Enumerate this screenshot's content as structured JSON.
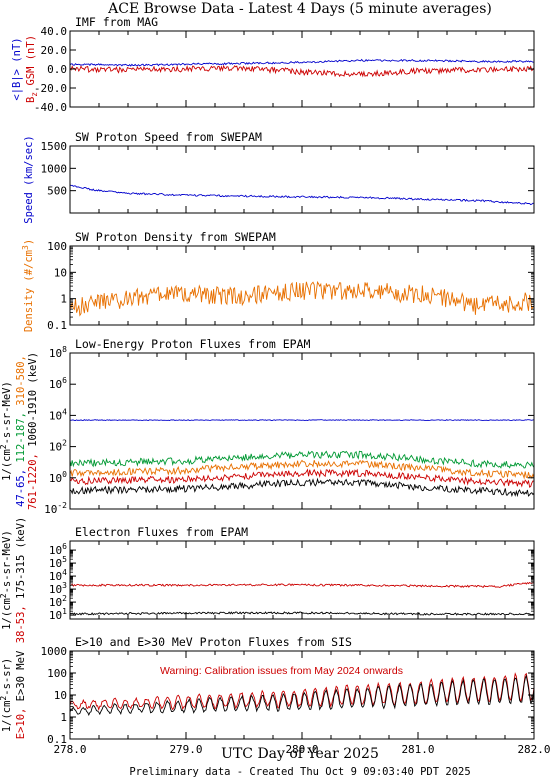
{
  "page": {
    "title": "ACE Browse Data - Latest 4 Days (5 minute averages)",
    "x_axis_label": "UTC Day of Year 2025",
    "footer": "Preliminary data - Created Thu Oct  9 09:03:40 PDT 2025",
    "x_ticks": [
      "278.0",
      "279.0",
      "280.0",
      "281.0",
      "282.0"
    ]
  },
  "chart_data": [
    {
      "type": "line",
      "title": "IMF from MAG",
      "ylabel_parts": [
        "<|B|> (nT)",
        "B",
        "z",
        " GSM (nT)"
      ],
      "ylabel_colors": [
        "#0000cc",
        "#cc0000"
      ],
      "yticks": [
        "40.0",
        "20.0",
        "0.0",
        "-20.0",
        "-40.0"
      ],
      "ylim": [
        -40,
        40
      ],
      "scale": "linear",
      "series": [
        {
          "name": "<|B|> (nT)",
          "color": "#0000cc",
          "x": [
            278.0,
            278.5,
            279.0,
            279.5,
            280.0,
            280.5,
            281.0,
            281.5,
            282.0
          ],
          "values": [
            5,
            4,
            5,
            6,
            7,
            9,
            9,
            8,
            8
          ]
        },
        {
          "name": "Bz GSM (nT)",
          "color": "#cc0000",
          "x": [
            278.0,
            278.5,
            279.0,
            279.5,
            280.0,
            280.5,
            281.0,
            281.5,
            282.0
          ],
          "values": [
            0,
            -1,
            0,
            1,
            -3,
            -6,
            -2,
            -1,
            0
          ]
        }
      ]
    },
    {
      "type": "line",
      "title": "SW Proton Speed from SWEPAM",
      "ylabel_parts": [
        "Speed (km/sec)"
      ],
      "ylabel_colors": [
        "#0000cc"
      ],
      "yticks": [
        "1500",
        "1000",
        "500"
      ],
      "ylim": [
        0,
        1500
      ],
      "scale": "linear",
      "series": [
        {
          "name": "Speed (km/sec)",
          "color": "#0000cc",
          "x": [
            278.0,
            278.2,
            278.5,
            279.0,
            279.5,
            280.0,
            280.5,
            281.0,
            281.5,
            282.0
          ],
          "values": [
            620,
            520,
            440,
            400,
            380,
            360,
            350,
            310,
            280,
            200
          ]
        }
      ]
    },
    {
      "type": "line",
      "title": "SW Proton Density from SWEPAM",
      "ylabel_parts": [
        "Density (#/cm",
        "3",
        ")"
      ],
      "ylabel_colors": [
        "#e87000"
      ],
      "yticks": [
        "100",
        "10",
        "1",
        "0.1"
      ],
      "ylim": [
        0.1,
        100
      ],
      "scale": "log",
      "series": [
        {
          "name": "Density (#/cm3)",
          "color": "#e87000",
          "x": [
            278.0,
            278.5,
            279.0,
            279.5,
            280.0,
            280.5,
            281.0,
            281.5,
            282.0
          ],
          "values": [
            0.4,
            1.0,
            1.5,
            1.2,
            2.0,
            2.0,
            1.5,
            0.5,
            0.8
          ]
        }
      ]
    },
    {
      "type": "line",
      "title": "Low-Energy Proton Fluxes from EPAM",
      "ylabel_parts": [
        "1/(cm",
        "2",
        "-s-sr-MeV)"
      ],
      "channel_labels": [
        {
          "text": "47-65,",
          "color": "#0000cc"
        },
        {
          "text": "112-187,",
          "color": "#009933"
        },
        {
          "text": "310-580,",
          "color": "#e87000"
        },
        {
          "text": "761-1220,",
          "color": "#cc0000"
        },
        {
          "text": "1060-1910 (keV)",
          "color": "#000000"
        }
      ],
      "yticks": [
        "10^8",
        "10^6",
        "10^4",
        "10^2",
        "10^0",
        "10^-2"
      ],
      "ylim": [
        0.01,
        100000000
      ],
      "scale": "log",
      "series": [
        {
          "name": "47-65",
          "color": "#0000cc",
          "x": [
            278.0,
            280.0,
            282.0
          ],
          "values": [
            5000,
            5000,
            5000
          ]
        },
        {
          "name": "112-187",
          "color": "#009933",
          "x": [
            278.0,
            278.5,
            279.0,
            279.5,
            280.0,
            280.5,
            281.0,
            281.5,
            282.0
          ],
          "values": [
            8,
            10,
            12,
            20,
            30,
            30,
            15,
            8,
            6
          ]
        },
        {
          "name": "310-580",
          "color": "#e87000",
          "x": [
            278.0,
            278.5,
            279.0,
            279.5,
            280.0,
            280.5,
            281.0,
            281.5,
            282.0
          ],
          "values": [
            2,
            2.5,
            3,
            5,
            8,
            8,
            4,
            2,
            1.5
          ]
        },
        {
          "name": "761-1220",
          "color": "#cc0000",
          "x": [
            278.0,
            278.5,
            279.0,
            279.5,
            280.0,
            280.5,
            281.0,
            281.5,
            282.0
          ],
          "values": [
            0.6,
            0.7,
            0.8,
            1.2,
            2,
            2,
            1,
            0.6,
            0.4
          ]
        },
        {
          "name": "1060-1910",
          "color": "#000000",
          "x": [
            278.0,
            278.5,
            279.0,
            279.5,
            280.0,
            280.5,
            281.0,
            281.5,
            282.0
          ],
          "values": [
            0.15,
            0.18,
            0.2,
            0.3,
            0.5,
            0.5,
            0.25,
            0.15,
            0.1
          ]
        }
      ]
    },
    {
      "type": "line",
      "title": "Electron Fluxes from EPAM",
      "ylabel_parts": [
        "1/(cm",
        "2",
        "-s-sr-MeV)"
      ],
      "channel_labels": [
        {
          "text": "38-53,",
          "color": "#cc0000"
        },
        {
          "text": "175-315 (keV)",
          "color": "#000000"
        }
      ],
      "yticks": [
        "10^6",
        "10^5",
        "10^4",
        "10^3",
        "10^2",
        "10^1"
      ],
      "ylim": [
        5,
        5000000
      ],
      "scale": "log",
      "series": [
        {
          "name": "38-53",
          "color": "#cc0000",
          "x": [
            278.0,
            279.0,
            280.0,
            281.0,
            281.7,
            282.0
          ],
          "values": [
            2000,
            2000,
            2100,
            1800,
            1500,
            3000
          ]
        },
        {
          "name": "175-315",
          "color": "#000000",
          "x": [
            278.0,
            279.0,
            280.0,
            281.0,
            282.0
          ],
          "values": [
            12,
            14,
            15,
            12,
            12
          ]
        }
      ]
    },
    {
      "type": "line",
      "title": "E>10 and E>30 MeV Proton Fluxes from SIS",
      "ylabel_parts": [
        "1/(cm",
        "2",
        "-s-sr)"
      ],
      "channel_labels": [
        {
          "text": "E>10,",
          "color": "#cc0000"
        },
        {
          "text": "E>30 MeV",
          "color": "#000000"
        }
      ],
      "annotation": "Warning: Calibration issues from May 2024 onwards",
      "yticks": [
        "1000",
        "100",
        "10",
        "1",
        "0.1"
      ],
      "ylim": [
        0.1,
        1000
      ],
      "scale": "log",
      "series": [
        {
          "name": "E>10",
          "color": "#cc0000",
          "x": [
            278.0,
            279.0,
            280.0,
            281.0,
            282.0
          ],
          "values": [
            4,
            6,
            10,
            20,
            40
          ]
        },
        {
          "name": "E>30",
          "color": "#000000",
          "x": [
            278.0,
            279.0,
            280.0,
            281.0,
            282.0
          ],
          "values": [
            2,
            4,
            7,
            15,
            30
          ]
        }
      ]
    }
  ]
}
